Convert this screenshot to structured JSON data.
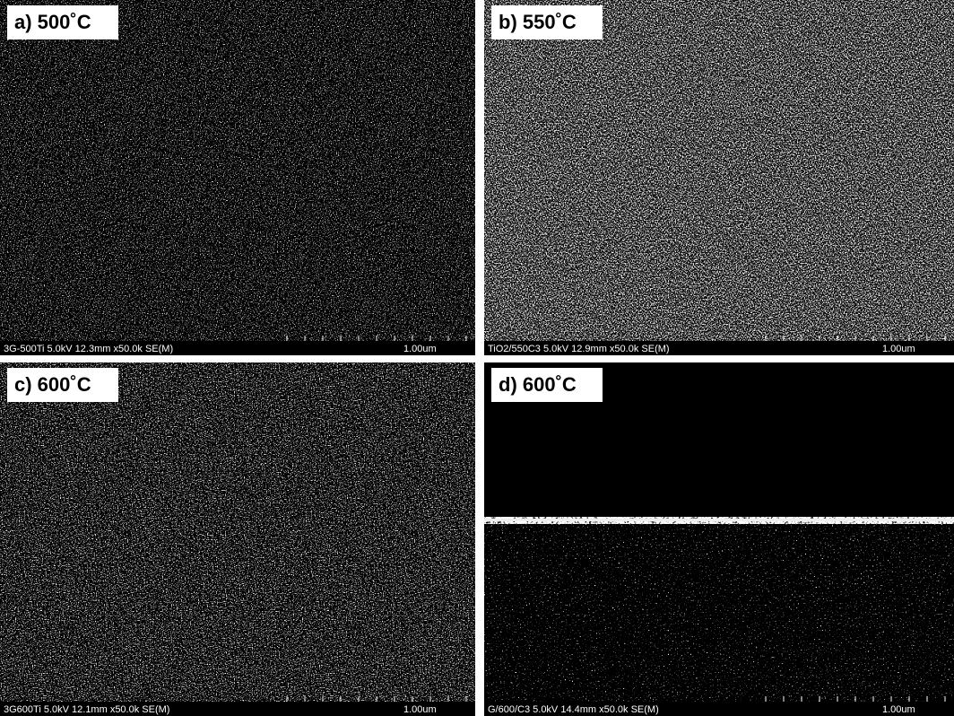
{
  "panels": [
    {
      "label": "a) 500˚C",
      "info": "3G-500Ti 5.0kV 12.3mm x50.0k SE(M)",
      "scale": "1.00um"
    },
    {
      "label": "b) 550˚C",
      "info": "TiO2/550C3 5.0kV 12.9mm x50.0k SE(M)",
      "scale": "1.00um"
    },
    {
      "label": "c) 600˚C",
      "info": "3G600Ti 5.0kV 12.1mm x50.0k SE(M)",
      "scale": "1.00um"
    },
    {
      "label": "d) 600˚C",
      "info": "G/600/C3 5.0kV 14.4mm x50.0k SE(M)",
      "scale": "1.00um"
    }
  ]
}
